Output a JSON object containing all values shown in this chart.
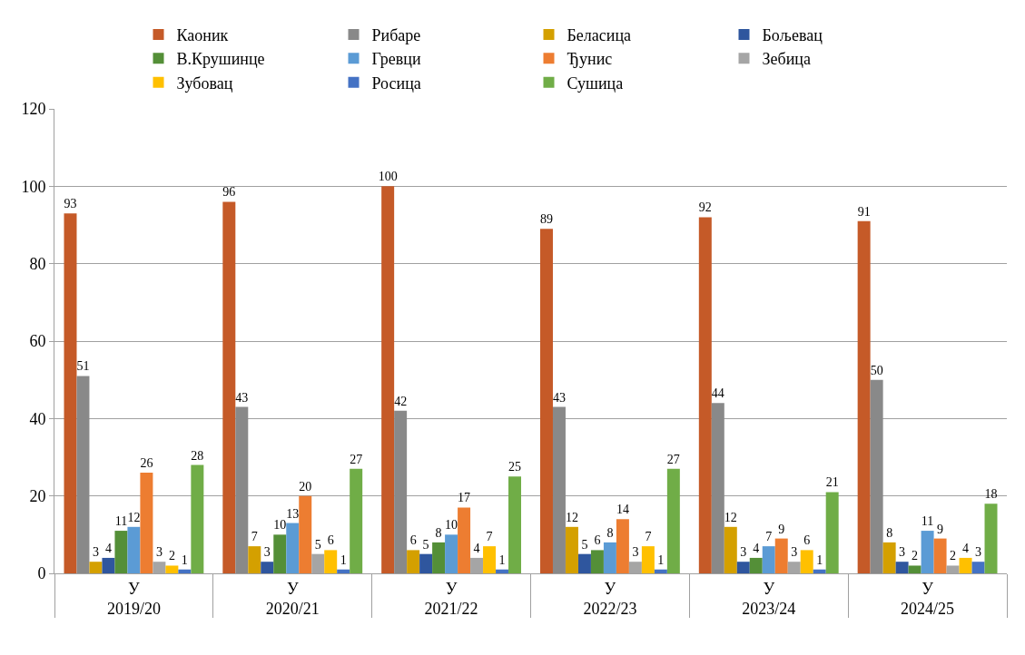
{
  "chart_data": {
    "type": "bar",
    "categories": [
      "У\n2019/20",
      "У\n2020/21",
      "У\n2021/22",
      "У\n2022/23",
      "У\n2023/24",
      "У\n2024/25"
    ],
    "series": [
      {
        "name": "Каоник",
        "color": "#c55a28",
        "values": [
          93,
          96,
          100,
          89,
          92,
          91
        ]
      },
      {
        "name": "Рибаре",
        "color": "#898989",
        "values": [
          51,
          43,
          42,
          43,
          44,
          50
        ]
      },
      {
        "name": "Беласица",
        "color": "#d4a000",
        "values": [
          3,
          7,
          6,
          12,
          12,
          8
        ]
      },
      {
        "name": "Бољевац",
        "color": "#2f569e",
        "values": [
          4,
          3,
          5,
          5,
          3,
          3
        ]
      },
      {
        "name": "В.Крушинце",
        "color": "#548f38",
        "values": [
          11,
          10,
          8,
          6,
          4,
          2
        ]
      },
      {
        "name": "Гревци",
        "color": "#5b9bd5",
        "values": [
          12,
          13,
          10,
          8,
          7,
          11
        ]
      },
      {
        "name": "Ђунис",
        "color": "#ed7d31",
        "values": [
          26,
          20,
          17,
          14,
          9,
          9
        ]
      },
      {
        "name": "Зебица",
        "color": "#a5a5a5",
        "values": [
          3,
          5,
          4,
          3,
          3,
          2
        ]
      },
      {
        "name": "Зубовац",
        "color": "#ffc000",
        "values": [
          2,
          6,
          7,
          7,
          6,
          4
        ]
      },
      {
        "name": "Росица",
        "color": "#4472c4",
        "values": [
          1,
          1,
          1,
          1,
          1,
          3
        ]
      },
      {
        "name": "Сушица",
        "color": "#70ad47",
        "values": [
          28,
          27,
          25,
          27,
          21,
          18
        ]
      }
    ],
    "ylim": [
      0,
      120
    ],
    "yticks": [
      0,
      20,
      40,
      60,
      80,
      100,
      120
    ],
    "grid": "y",
    "legend": "top",
    "data_labels": true
  }
}
